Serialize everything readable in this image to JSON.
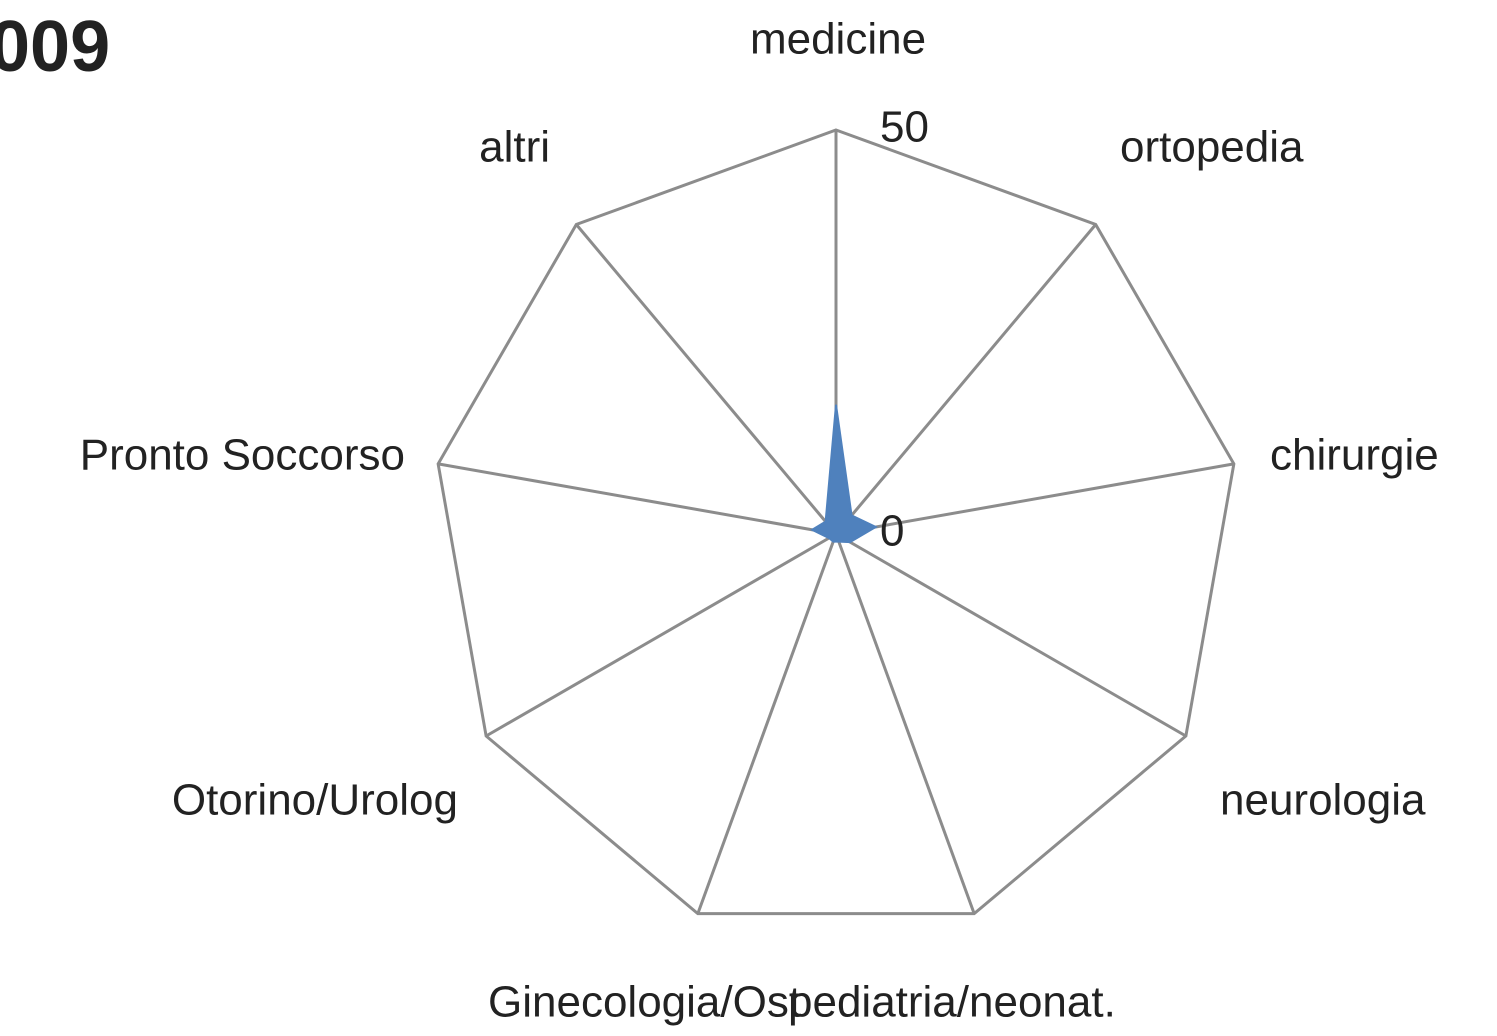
{
  "chart_data": {
    "type": "radar",
    "title": "009",
    "categories": [
      "medicine",
      "ortopedia",
      "chirurgie",
      "neurologia",
      "pediatria/neonat.",
      "Ginecologia/Ost",
      "Otorino/Urolog",
      "Pronto Soccorso",
      "altri"
    ],
    "series": [
      {
        "color": "#4f81bd",
        "values": [
          16,
          3,
          5,
          2,
          1,
          1,
          1,
          3,
          2
        ]
      }
    ],
    "ylim": [
      0,
      50
    ],
    "yticks": [
      0,
      50
    ],
    "grid": true
  }
}
